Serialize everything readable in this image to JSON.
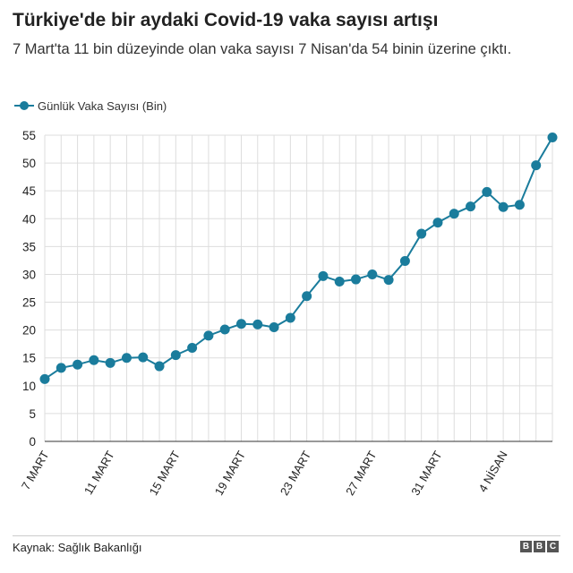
{
  "header": {
    "title": "Türkiye'de bir aydaki Covid-19 vaka sayısı artışı",
    "subtitle": "7 Mart'ta 11 bin düzeyinde olan vaka sayısı 7 Nisan'da 54 binin üzerine çıktı."
  },
  "footer": {
    "source": "Kaynak: Sağlık Bakanlığı",
    "logo_letters": [
      "B",
      "B",
      "C"
    ]
  },
  "colors": {
    "series": "#1a7c9c",
    "grid": "#dddddd",
    "axis": "#333333"
  },
  "chart_data": {
    "type": "line",
    "title": "Türkiye'de bir aydaki Covid-19 vaka sayısı artışı",
    "xlabel": "",
    "ylabel": "",
    "ylim": [
      0,
      55
    ],
    "yticks": [
      0,
      5,
      10,
      15,
      20,
      25,
      30,
      35,
      40,
      45,
      50,
      55
    ],
    "grid": true,
    "legend_position": "top-left",
    "x": [
      "7 Mart",
      "8 Mart",
      "9 Mart",
      "10 Mart",
      "11 Mart",
      "12 Mart",
      "13 Mart",
      "14 Mart",
      "15 Mart",
      "16 Mart",
      "17 Mart",
      "18 Mart",
      "19 Mart",
      "20 Mart",
      "21 Mart",
      "22 Mart",
      "23 Mart",
      "24 Mart",
      "25 Mart",
      "26 Mart",
      "27 Mart",
      "28 Mart",
      "29 Mart",
      "30 Mart",
      "31 Mart",
      "1 Nisan",
      "2 Nisan",
      "3 Nisan",
      "4 Nisan",
      "5 Nisan",
      "6 Nisan",
      "7 Nisan"
    ],
    "xtick_labels": [
      {
        "index": 0,
        "label": "7 MART"
      },
      {
        "index": 4,
        "label": "11 MART"
      },
      {
        "index": 8,
        "label": "15 MART"
      },
      {
        "index": 12,
        "label": "19 MART"
      },
      {
        "index": 16,
        "label": "23 MART"
      },
      {
        "index": 20,
        "label": "27 MART"
      },
      {
        "index": 24,
        "label": "31 MART"
      },
      {
        "index": 28,
        "label": "4 NİSAN"
      }
    ],
    "series": [
      {
        "name": "Günlük Vaka Sayısı (Bin)",
        "values": [
          11.2,
          13.2,
          13.8,
          14.6,
          14.1,
          15.0,
          15.1,
          13.5,
          15.5,
          16.8,
          19.0,
          20.1,
          21.1,
          21.0,
          20.5,
          22.2,
          26.1,
          29.7,
          28.7,
          29.1,
          30.0,
          29.0,
          32.4,
          37.3,
          39.3,
          40.9,
          42.2,
          44.8,
          42.1,
          42.5,
          49.6,
          54.6
        ]
      }
    ]
  }
}
